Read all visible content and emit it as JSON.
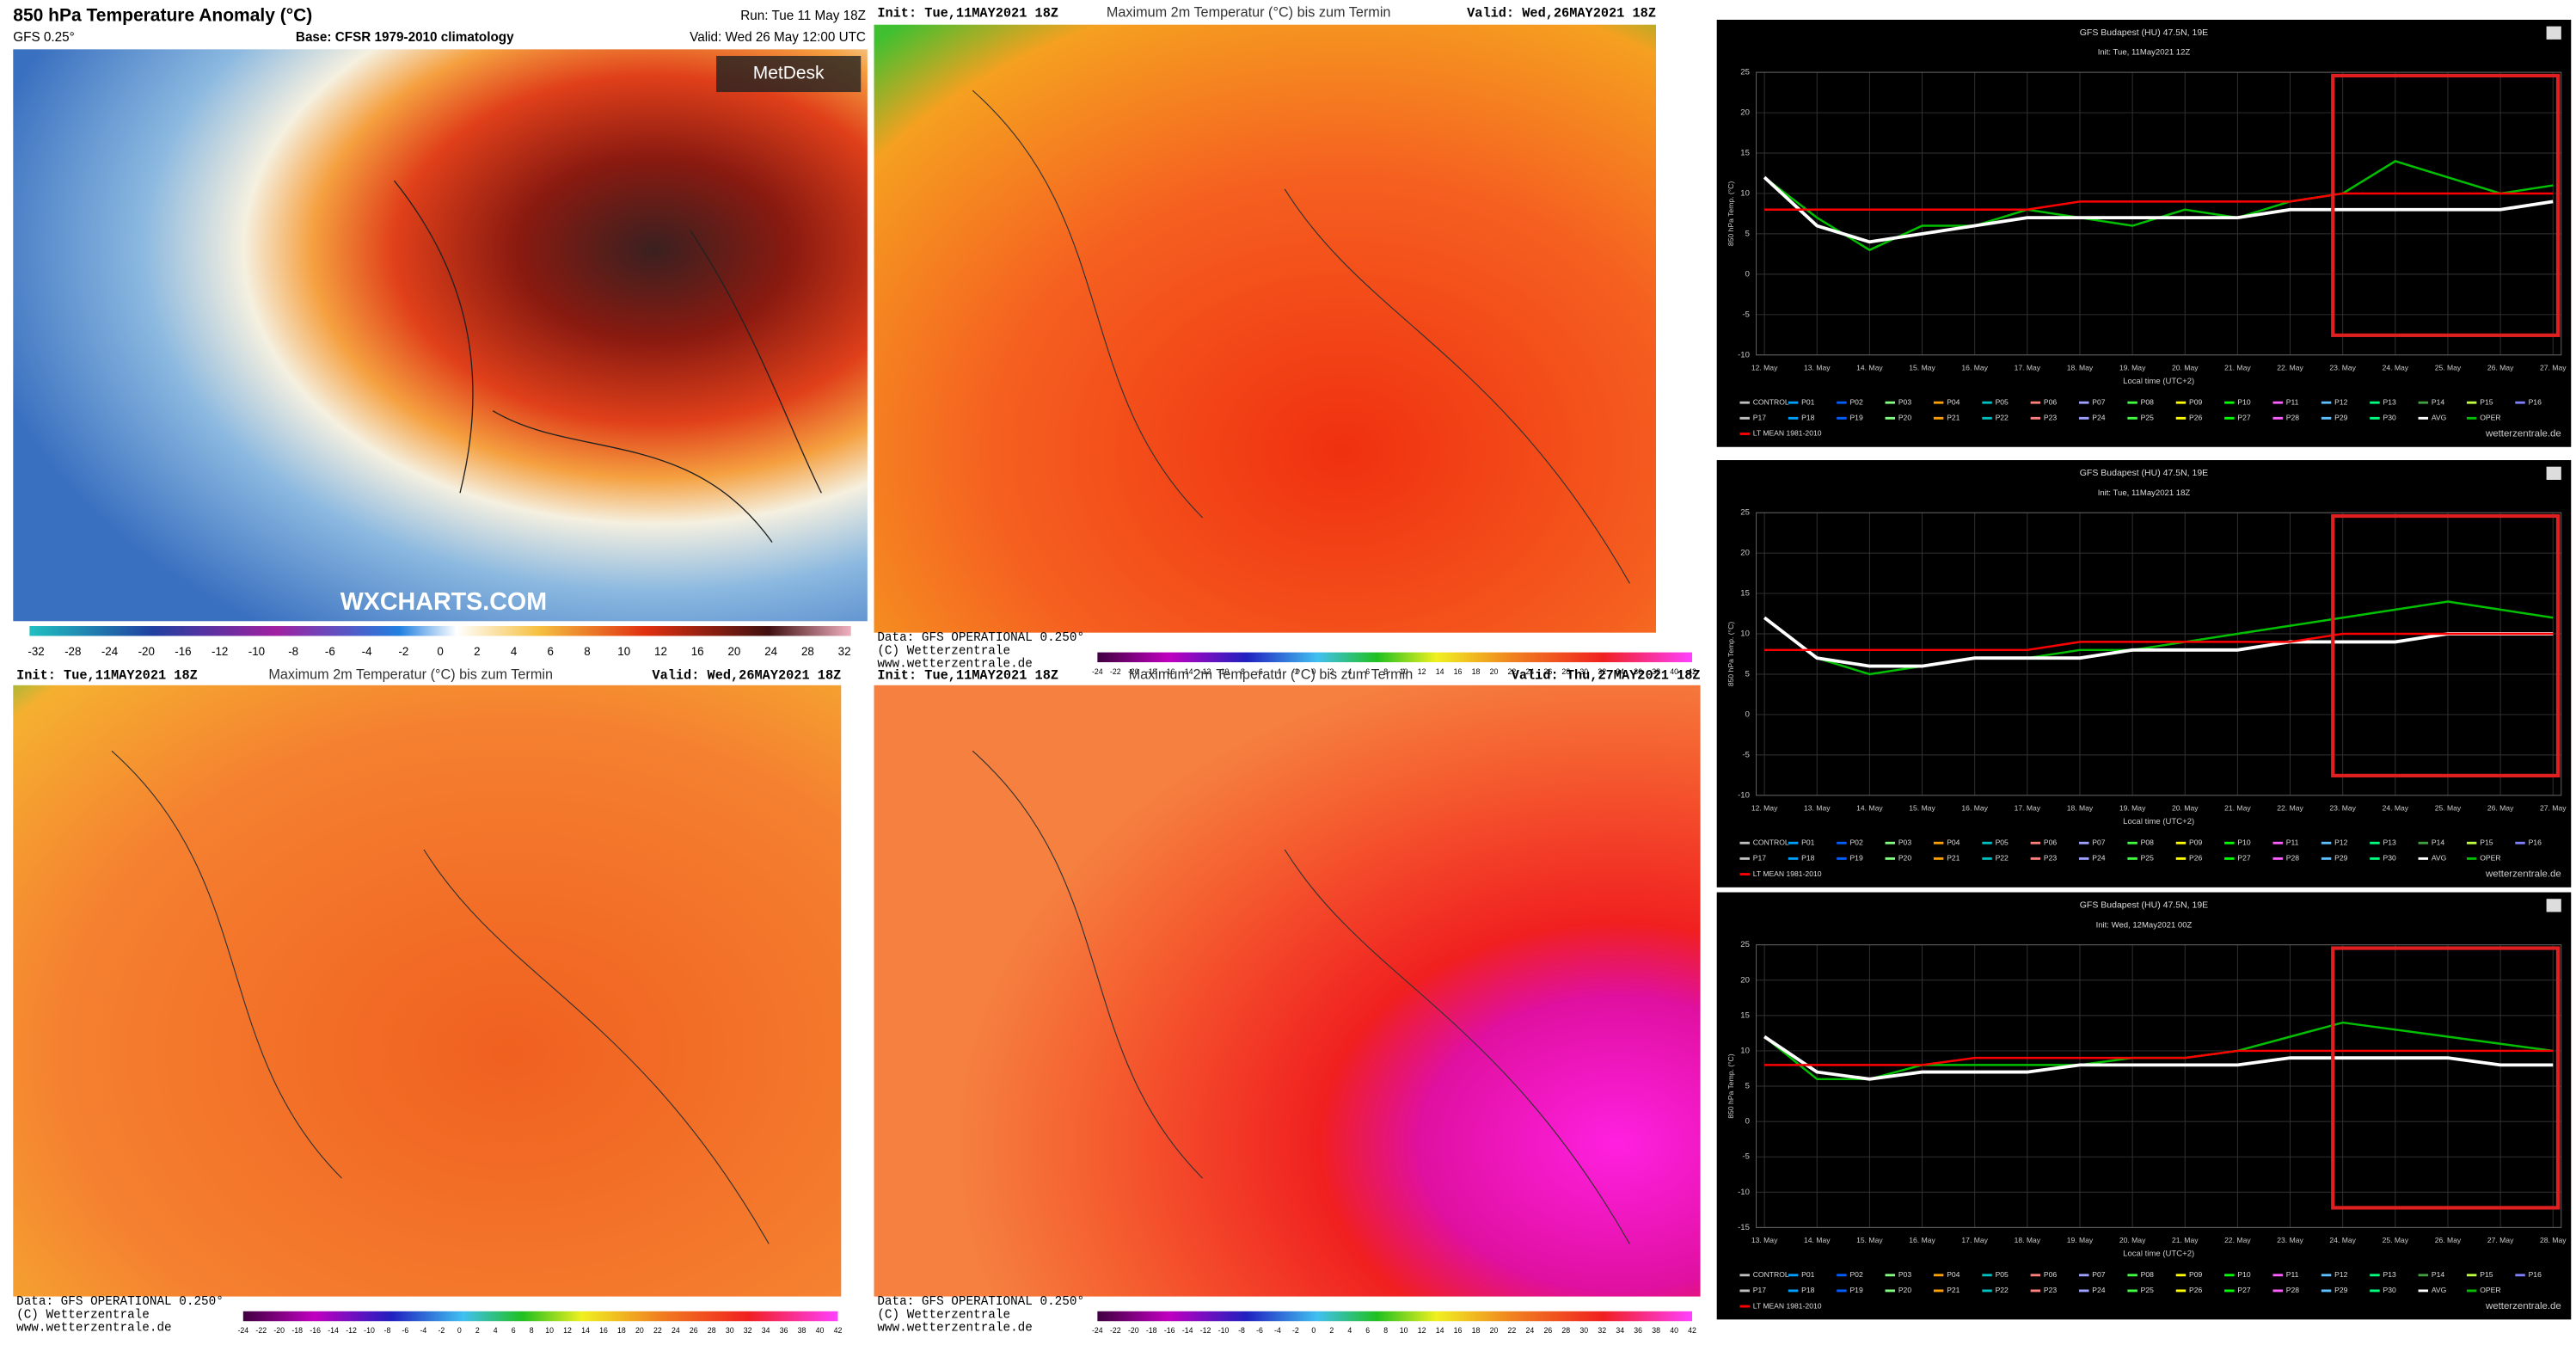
{
  "map_main": {
    "title": "850 hPa Temperature Anomaly (°C)",
    "model": "GFS 0.25°",
    "base": "Base: CFSR 1979-2010 climatology",
    "run": "Run: Tue 11 May 18Z",
    "valid": "Valid: Wed 26 May 12:00 UTC",
    "logo": "MetDesk",
    "watermark": "WXCHARTS.COM",
    "colorbar": [
      -32,
      -28,
      -24,
      -20,
      -16,
      -12,
      -10,
      -8,
      -6,
      -4,
      -2,
      0,
      2,
      4,
      6,
      8,
      10,
      12,
      16,
      20,
      24,
      28,
      32
    ]
  },
  "wz_colorbar": [
    -24,
    -22,
    -20,
    -18,
    -16,
    -14,
    -12,
    -10,
    -8,
    -6,
    -4,
    -2,
    0,
    2,
    4,
    6,
    8,
    10,
    12,
    14,
    16,
    18,
    20,
    22,
    24,
    26,
    28,
    30,
    32,
    34,
    36,
    38,
    40,
    42
  ],
  "wz_maps": [
    {
      "init": "Init: Tue,11MAY2021  18Z",
      "title": "Maximum 2m Temperatur (°C) bis zum Termin",
      "valid": "Valid: Wed,26MAY2021 18Z",
      "data": "Data: GFS OPERATIONAL 0.250°",
      "copyright": "(C) Wetterzentrale",
      "url": "www.wetterzentrale.de"
    },
    {
      "init": "Init: Tue,11MAY2021  18Z",
      "title": "Maximum 2m Temperatur (°C) bis zum Termin",
      "valid": "Valid: Wed,26MAY2021 18Z",
      "data": "Data: GFS OPERATIONAL 0.250°",
      "copyright": "(C) Wetterzentrale",
      "url": "www.wetterzentrale.de"
    },
    {
      "init": "Init: Tue,11MAY2021  18Z",
      "title": "Maximum 2m Temperatur (°C) bis zum Termin",
      "valid": "Valid: Thu,27MAY2021 18Z",
      "data": "Data: GFS OPERATIONAL 0.250°",
      "copyright": "(C) Wetterzentrale",
      "url": "www.wetterzentrale.de"
    }
  ],
  "chart_data": [
    {
      "type": "line",
      "title": "GFS Budapest (HU) 47.5N, 19E",
      "subtitle": "Init: Tue, 11May2021 12Z",
      "y_label": "850 hPa Temp. (°C)",
      "x_label": "Local time (UTC+2)",
      "categories": [
        "12. May",
        "13. May",
        "14. May",
        "15. May",
        "16. May",
        "17. May",
        "18. May",
        "19. May",
        "20. May",
        "21. May",
        "22. May",
        "23. May",
        "24. May",
        "25. May",
        "26. May",
        "27. May"
      ],
      "ylim": [
        -10,
        25
      ],
      "yticks": [
        -10,
        -5,
        0,
        5,
        10,
        15,
        20,
        25
      ],
      "series": [
        {
          "name": "OPER",
          "color": "#00c000",
          "values": [
            12,
            7,
            3,
            6,
            6,
            8,
            7,
            6,
            8,
            7,
            9,
            10,
            14,
            12,
            10,
            11
          ]
        },
        {
          "name": "AVG",
          "color": "#ffffff",
          "values": [
            12,
            6,
            4,
            5,
            6,
            7,
            7,
            7,
            7,
            7,
            8,
            8,
            8,
            8,
            8,
            9
          ]
        },
        {
          "name": "LT MEAN 1981-2010",
          "color": "#ff0000",
          "values": [
            8,
            8,
            8,
            8,
            8,
            8,
            9,
            9,
            9,
            9,
            9,
            10,
            10,
            10,
            10,
            10
          ]
        }
      ],
      "legend": [
        "CONTROL",
        "P01",
        "P02",
        "P03",
        "P04",
        "P05",
        "P06",
        "P07",
        "P08",
        "P09",
        "P10",
        "P11",
        "P12",
        "P13",
        "P14",
        "P15",
        "P16",
        "P17",
        "P18",
        "P19",
        "P20",
        "P21",
        "P22",
        "P23",
        "P24",
        "P25",
        "P26",
        "P27",
        "P28",
        "P29",
        "P30",
        "AVG",
        "OPER",
        "LT MEAN 1981-2010"
      ],
      "credit": "wetterzentrale.de"
    },
    {
      "type": "line",
      "title": "GFS Budapest (HU) 47.5N, 19E",
      "subtitle": "Init: Tue, 11May2021 18Z",
      "y_label": "850 hPa Temp. (°C)",
      "x_label": "Local time (UTC+2)",
      "categories": [
        "12. May",
        "13. May",
        "14. May",
        "15. May",
        "16. May",
        "17. May",
        "18. May",
        "19. May",
        "20. May",
        "21. May",
        "22. May",
        "23. May",
        "24. May",
        "25. May",
        "26. May",
        "27. May"
      ],
      "ylim": [
        -10,
        25
      ],
      "yticks": [
        -10,
        -5,
        0,
        5,
        10,
        15,
        20,
        25
      ],
      "series": [
        {
          "name": "OPER",
          "color": "#00c000",
          "values": [
            12,
            7,
            5,
            6,
            7,
            7,
            8,
            8,
            9,
            10,
            11,
            12,
            13,
            14,
            13,
            12
          ]
        },
        {
          "name": "AVG",
          "color": "#ffffff",
          "values": [
            12,
            7,
            6,
            6,
            7,
            7,
            7,
            8,
            8,
            8,
            9,
            9,
            9,
            10,
            10,
            10
          ]
        },
        {
          "name": "LT MEAN 1981-2010",
          "color": "#ff0000",
          "values": [
            8,
            8,
            8,
            8,
            8,
            8,
            9,
            9,
            9,
            9,
            9,
            10,
            10,
            10,
            10,
            10
          ]
        }
      ],
      "legend": [
        "CONTROL",
        "P01",
        "P02",
        "P03",
        "P04",
        "P05",
        "P06",
        "P07",
        "P08",
        "P09",
        "P10",
        "P11",
        "P12",
        "P13",
        "P14",
        "P15",
        "P16",
        "P17",
        "P18",
        "P19",
        "P20",
        "P21",
        "P22",
        "P23",
        "P24",
        "P25",
        "P26",
        "P27",
        "P28",
        "P29",
        "P30",
        "AVG",
        "OPER",
        "LT MEAN 1981-2010"
      ],
      "credit": "wetterzentrale.de"
    },
    {
      "type": "line",
      "title": "GFS Budapest (HU) 47.5N, 19E",
      "subtitle": "Init: Wed, 12May2021 00Z",
      "y_label": "850 hPa Temp. (°C)",
      "x_label": "Local time (UTC+2)",
      "categories": [
        "13. May",
        "14. May",
        "15. May",
        "16. May",
        "17. May",
        "18. May",
        "19. May",
        "20. May",
        "21. May",
        "22. May",
        "23. May",
        "24. May",
        "25. May",
        "26. May",
        "27. May",
        "28. May"
      ],
      "ylim": [
        -15,
        25
      ],
      "yticks": [
        -15,
        -10,
        -5,
        0,
        5,
        10,
        15,
        20,
        25
      ],
      "series": [
        {
          "name": "OPER",
          "color": "#00c000",
          "values": [
            12,
            6,
            6,
            8,
            8,
            8,
            8,
            9,
            9,
            10,
            12,
            14,
            13,
            12,
            11,
            10
          ]
        },
        {
          "name": "AVG",
          "color": "#ffffff",
          "values": [
            12,
            7,
            6,
            7,
            7,
            7,
            8,
            8,
            8,
            8,
            9,
            9,
            9,
            9,
            8,
            8
          ]
        },
        {
          "name": "LT MEAN 1981-2010",
          "color": "#ff0000",
          "values": [
            8,
            8,
            8,
            8,
            9,
            9,
            9,
            9,
            9,
            10,
            10,
            10,
            10,
            10,
            10,
            10
          ]
        }
      ],
      "legend": [
        "CONTROL",
        "P01",
        "P02",
        "P03",
        "P04",
        "P05",
        "P06",
        "P07",
        "P08",
        "P09",
        "P10",
        "P11",
        "P12",
        "P13",
        "P14",
        "P15",
        "P16",
        "P17",
        "P18",
        "P19",
        "P20",
        "P21",
        "P22",
        "P23",
        "P24",
        "P25",
        "P26",
        "P27",
        "P28",
        "P29",
        "P30",
        "AVG",
        "OPER",
        "LT MEAN 1981-2010"
      ],
      "credit": "wetterzentrale.de"
    }
  ]
}
